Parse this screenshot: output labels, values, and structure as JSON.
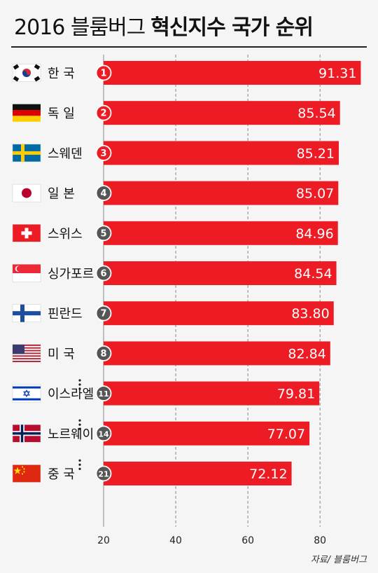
{
  "title": {
    "part1": "2016 블룸버그",
    "part2": "혁신지수 국가 순위"
  },
  "source": "자료/ 블룸버그",
  "colors": {
    "bar": "#ed1c24",
    "badge_top3": "#ed1c24",
    "badge_other": "#555555",
    "grid": "#888888"
  },
  "chart_data": {
    "type": "bar",
    "orientation": "horizontal",
    "xlim": [
      20,
      92
    ],
    "xticks": [
      "20",
      "40",
      "60",
      "80"
    ],
    "grid": true,
    "rows": [
      {
        "country": "한  국",
        "rank": "1",
        "value": 91.31,
        "label": "91.31",
        "flag": "korea-flag-icon"
      },
      {
        "country": "독  일",
        "rank": "2",
        "value": 85.54,
        "label": "85.54",
        "flag": "germany-flag-icon"
      },
      {
        "country": "스웨덴",
        "rank": "3",
        "value": 85.21,
        "label": "85.21",
        "flag": "sweden-flag-icon"
      },
      {
        "country": "일  본",
        "rank": "4",
        "value": 85.07,
        "label": "85.07",
        "flag": "japan-flag-icon"
      },
      {
        "country": "스위스",
        "rank": "5",
        "value": 84.96,
        "label": "84.96",
        "flag": "switzerland-flag-icon"
      },
      {
        "country": "싱가포르",
        "rank": "6",
        "value": 84.54,
        "label": "84.54",
        "flag": "singapore-flag-icon"
      },
      {
        "country": "핀란드",
        "rank": "7",
        "value": 83.8,
        "label": "83.80",
        "flag": "finland-flag-icon"
      },
      {
        "country": "미  국",
        "rank": "8",
        "value": 82.84,
        "label": "82.84",
        "flag": "usa-flag-icon"
      },
      {
        "gap": true
      },
      {
        "country": "이스라엘",
        "rank": "11",
        "value": 79.81,
        "label": "79.81",
        "flag": "israel-flag-icon"
      },
      {
        "gap": true
      },
      {
        "country": "노르웨이",
        "rank": "14",
        "value": 77.07,
        "label": "77.07",
        "flag": "norway-flag-icon"
      },
      {
        "gap": true
      },
      {
        "country": "중  국",
        "rank": "21",
        "value": 72.12,
        "label": "72.12",
        "flag": "china-flag-icon"
      }
    ]
  }
}
